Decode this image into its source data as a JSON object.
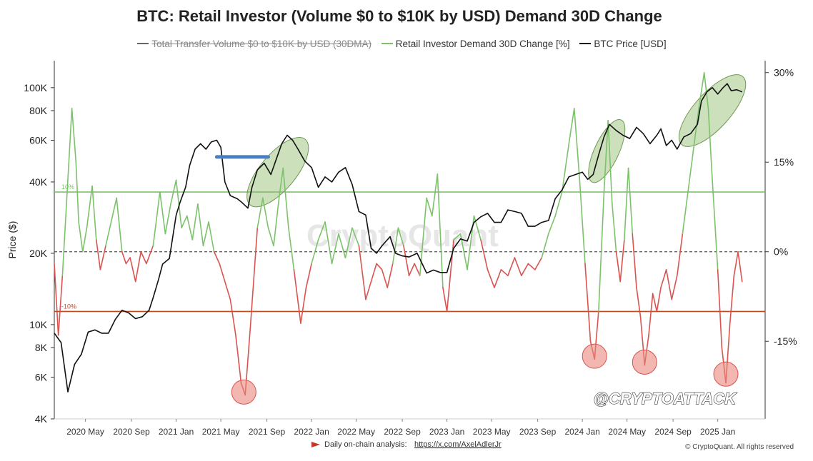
{
  "chart_data": {
    "type": "line",
    "title": "BTC: Retail Investor (Volume $0 to $10K by USD) Demand 30D Change",
    "legend": [
      {
        "name": "Total Transfer Volume  $0 to $10K by USD (30DMA)",
        "color": "#666666",
        "hidden": true
      },
      {
        "name": "Retail Investor Demand 30D Change [%]",
        "color": "#7cc26b",
        "hidden": false
      },
      {
        "name": "BTC Price [USD]",
        "color": "#111111",
        "hidden": false
      }
    ],
    "y_left_label": "Price ($)",
    "y_left_scale": "log",
    "y_left_range": [
      4000,
      130000
    ],
    "y_left_ticks": [
      {
        "value": 100000,
        "label": "100K"
      },
      {
        "value": 80000,
        "label": "80K"
      },
      {
        "value": 60000,
        "label": "60K"
      },
      {
        "value": 40000,
        "label": "40K"
      },
      {
        "value": 20000,
        "label": "20K"
      },
      {
        "value": 10000,
        "label": "10K"
      },
      {
        "value": 8000,
        "label": "8K"
      },
      {
        "value": 6000,
        "label": "6K"
      },
      {
        "value": 4000,
        "label": "4K"
      }
    ],
    "y_right_range": [
      -28,
      32
    ],
    "y_right_ticks": [
      {
        "value": 30,
        "label": "30%"
      },
      {
        "value": 15,
        "label": "15%"
      },
      {
        "value": 0,
        "label": "0%"
      },
      {
        "value": -15,
        "label": "-15%"
      }
    ],
    "x_range": [
      2020.1,
      2025.35
    ],
    "x_ticks": [
      {
        "value": 2020.33,
        "label": "2020 May"
      },
      {
        "value": 2020.67,
        "label": "2020 Sep"
      },
      {
        "value": 2021.0,
        "label": "2021 Jan"
      },
      {
        "value": 2021.33,
        "label": "2021 May"
      },
      {
        "value": 2021.67,
        "label": "2021 Sep"
      },
      {
        "value": 2022.0,
        "label": "2022 Jan"
      },
      {
        "value": 2022.33,
        "label": "2022 May"
      },
      {
        "value": 2022.67,
        "label": "2022 Sep"
      },
      {
        "value": 2023.0,
        "label": "2023 Jan"
      },
      {
        "value": 2023.33,
        "label": "2023 May"
      },
      {
        "value": 2023.67,
        "label": "2023 Sep"
      },
      {
        "value": 2024.0,
        "label": "2024 Jan"
      },
      {
        "value": 2024.33,
        "label": "2024 May"
      },
      {
        "value": 2024.67,
        "label": "2024 Sep"
      },
      {
        "value": 2025.0,
        "label": "2025 Jan"
      }
    ],
    "reference_lines": [
      {
        "value": 10,
        "label": "10%",
        "color": "#7cc26b"
      },
      {
        "value": 0,
        "label": "",
        "color": "#555555",
        "dashed": true
      },
      {
        "value": -10,
        "label": "-10%",
        "color": "#c0461e"
      }
    ],
    "series": [
      {
        "name": "BTC Price [USD]",
        "axis": "left",
        "color": "#111111",
        "points": [
          [
            2020.1,
            9200
          ],
          [
            2020.15,
            8400
          ],
          [
            2020.2,
            5200
          ],
          [
            2020.25,
            6800
          ],
          [
            2020.3,
            7500
          ],
          [
            2020.35,
            9300
          ],
          [
            2020.4,
            9500
          ],
          [
            2020.45,
            9200
          ],
          [
            2020.5,
            9200
          ],
          [
            2020.55,
            10500
          ],
          [
            2020.6,
            11500
          ],
          [
            2020.65,
            11200
          ],
          [
            2020.7,
            10600
          ],
          [
            2020.75,
            10800
          ],
          [
            2020.8,
            11500
          ],
          [
            2020.83,
            13000
          ],
          [
            2020.87,
            15500
          ],
          [
            2020.9,
            18000
          ],
          [
            2020.95,
            19000
          ],
          [
            2021.0,
            29000
          ],
          [
            2021.03,
            33000
          ],
          [
            2021.07,
            38000
          ],
          [
            2021.1,
            47000
          ],
          [
            2021.14,
            55000
          ],
          [
            2021.18,
            58000
          ],
          [
            2021.22,
            55000
          ],
          [
            2021.26,
            59000
          ],
          [
            2021.3,
            60000
          ],
          [
            2021.33,
            56000
          ],
          [
            2021.36,
            40000
          ],
          [
            2021.4,
            35000
          ],
          [
            2021.45,
            34000
          ],
          [
            2021.48,
            33000
          ],
          [
            2021.53,
            31000
          ],
          [
            2021.56,
            38000
          ],
          [
            2021.6,
            45000
          ],
          [
            2021.65,
            48000
          ],
          [
            2021.7,
            43000
          ],
          [
            2021.74,
            50000
          ],
          [
            2021.78,
            58000
          ],
          [
            2021.82,
            63000
          ],
          [
            2021.86,
            60000
          ],
          [
            2021.9,
            55000
          ],
          [
            2021.95,
            49000
          ],
          [
            2022.0,
            46000
          ],
          [
            2022.05,
            38000
          ],
          [
            2022.1,
            42000
          ],
          [
            2022.15,
            40000
          ],
          [
            2022.2,
            44000
          ],
          [
            2022.25,
            46000
          ],
          [
            2022.3,
            39000
          ],
          [
            2022.35,
            30000
          ],
          [
            2022.4,
            29000
          ],
          [
            2022.44,
            21000
          ],
          [
            2022.48,
            20000
          ],
          [
            2022.52,
            21500
          ],
          [
            2022.58,
            23500
          ],
          [
            2022.62,
            20000
          ],
          [
            2022.67,
            19500
          ],
          [
            2022.72,
            19300
          ],
          [
            2022.78,
            20000
          ],
          [
            2022.85,
            16500
          ],
          [
            2022.9,
            17000
          ],
          [
            2022.95,
            16600
          ],
          [
            2023.0,
            16600
          ],
          [
            2023.05,
            21000
          ],
          [
            2023.1,
            23000
          ],
          [
            2023.15,
            22500
          ],
          [
            2023.2,
            27000
          ],
          [
            2023.25,
            28500
          ],
          [
            2023.3,
            29500
          ],
          [
            2023.35,
            27000
          ],
          [
            2023.4,
            27000
          ],
          [
            2023.45,
            30500
          ],
          [
            2023.5,
            30000
          ],
          [
            2023.55,
            29500
          ],
          [
            2023.6,
            26000
          ],
          [
            2023.65,
            26000
          ],
          [
            2023.7,
            27000
          ],
          [
            2023.75,
            27500
          ],
          [
            2023.8,
            34000
          ],
          [
            2023.85,
            37000
          ],
          [
            2023.9,
            42000
          ],
          [
            2023.95,
            43000
          ],
          [
            2024.0,
            44000
          ],
          [
            2024.04,
            41000
          ],
          [
            2024.08,
            43000
          ],
          [
            2024.12,
            52000
          ],
          [
            2024.16,
            62000
          ],
          [
            2024.2,
            70000
          ],
          [
            2024.25,
            66000
          ],
          [
            2024.3,
            63000
          ],
          [
            2024.35,
            61000
          ],
          [
            2024.4,
            68000
          ],
          [
            2024.45,
            64000
          ],
          [
            2024.5,
            58000
          ],
          [
            2024.55,
            63000
          ],
          [
            2024.58,
            67000
          ],
          [
            2024.62,
            57000
          ],
          [
            2024.66,
            60000
          ],
          [
            2024.7,
            55000
          ],
          [
            2024.75,
            62000
          ],
          [
            2024.8,
            64000
          ],
          [
            2024.85,
            70000
          ],
          [
            2024.88,
            88000
          ],
          [
            2024.92,
            96000
          ],
          [
            2024.96,
            100000
          ],
          [
            2025.0,
            94000
          ],
          [
            2025.04,
            100000
          ],
          [
            2025.07,
            104000
          ],
          [
            2025.1,
            97000
          ],
          [
            2025.14,
            98000
          ],
          [
            2025.18,
            96000
          ]
        ]
      },
      {
        "name": "Retail Investor Demand 30D Change [%]",
        "axis": "right",
        "color_positive": "#7cc26b",
        "color_negative": "#d9534f",
        "points": [
          [
            2020.1,
            -2
          ],
          [
            2020.13,
            -14
          ],
          [
            2020.16,
            -4
          ],
          [
            2020.2,
            12
          ],
          [
            2020.23,
            24
          ],
          [
            2020.26,
            15
          ],
          [
            2020.28,
            5
          ],
          [
            2020.31,
            0
          ],
          [
            2020.34,
            4
          ],
          [
            2020.38,
            11
          ],
          [
            2020.41,
            2
          ],
          [
            2020.44,
            -3
          ],
          [
            2020.48,
            1
          ],
          [
            2020.52,
            5
          ],
          [
            2020.56,
            9
          ],
          [
            2020.6,
            0
          ],
          [
            2020.63,
            -2
          ],
          [
            2020.66,
            -1
          ],
          [
            2020.7,
            -5
          ],
          [
            2020.74,
            0
          ],
          [
            2020.78,
            -2
          ],
          [
            2020.83,
            1
          ],
          [
            2020.88,
            10
          ],
          [
            2020.92,
            3
          ],
          [
            2020.96,
            8
          ],
          [
            2021.0,
            12
          ],
          [
            2021.04,
            4
          ],
          [
            2021.08,
            6
          ],
          [
            2021.12,
            2
          ],
          [
            2021.16,
            8
          ],
          [
            2021.2,
            1
          ],
          [
            2021.24,
            5
          ],
          [
            2021.28,
            0
          ],
          [
            2021.32,
            -2
          ],
          [
            2021.36,
            -5
          ],
          [
            2021.4,
            -8
          ],
          [
            2021.44,
            -14
          ],
          [
            2021.48,
            -22
          ],
          [
            2021.51,
            -24
          ],
          [
            2021.55,
            -12
          ],
          [
            2021.6,
            4
          ],
          [
            2021.64,
            9
          ],
          [
            2021.68,
            4
          ],
          [
            2021.72,
            1
          ],
          [
            2021.76,
            9
          ],
          [
            2021.79,
            14
          ],
          [
            2021.83,
            4
          ],
          [
            2021.87,
            -3
          ],
          [
            2021.92,
            -12
          ],
          [
            2021.96,
            -6
          ],
          [
            2022.0,
            -2
          ],
          [
            2022.05,
            2
          ],
          [
            2022.1,
            5
          ],
          [
            2022.15,
            -2
          ],
          [
            2022.2,
            3
          ],
          [
            2022.25,
            -1
          ],
          [
            2022.3,
            4
          ],
          [
            2022.35,
            1
          ],
          [
            2022.4,
            -8
          ],
          [
            2022.44,
            -5
          ],
          [
            2022.48,
            -2
          ],
          [
            2022.52,
            -3
          ],
          [
            2022.56,
            -6
          ],
          [
            2022.6,
            -2
          ],
          [
            2022.64,
            4
          ],
          [
            2022.68,
            1
          ],
          [
            2022.72,
            -4
          ],
          [
            2022.76,
            -2
          ],
          [
            2022.8,
            -4
          ],
          [
            2022.85,
            9
          ],
          [
            2022.89,
            6
          ],
          [
            2022.93,
            13
          ],
          [
            2022.97,
            -6
          ],
          [
            2023.0,
            -10
          ],
          [
            2023.05,
            2
          ],
          [
            2023.1,
            3
          ],
          [
            2023.15,
            -3
          ],
          [
            2023.2,
            6
          ],
          [
            2023.25,
            2
          ],
          [
            2023.3,
            -3
          ],
          [
            2023.35,
            -6
          ],
          [
            2023.4,
            -3
          ],
          [
            2023.45,
            -4
          ],
          [
            2023.5,
            -1
          ],
          [
            2023.55,
            -4
          ],
          [
            2023.6,
            -2
          ],
          [
            2023.65,
            -3
          ],
          [
            2023.7,
            -1
          ],
          [
            2023.75,
            3
          ],
          [
            2023.8,
            6
          ],
          [
            2023.85,
            10
          ],
          [
            2023.9,
            18
          ],
          [
            2023.94,
            24
          ],
          [
            2023.98,
            12
          ],
          [
            2024.02,
            -2
          ],
          [
            2024.06,
            -15
          ],
          [
            2024.09,
            -18
          ],
          [
            2024.12,
            -10
          ],
          [
            2024.16,
            10
          ],
          [
            2024.19,
            22
          ],
          [
            2024.22,
            8
          ],
          [
            2024.25,
            0
          ],
          [
            2024.28,
            -5
          ],
          [
            2024.31,
            2
          ],
          [
            2024.34,
            14
          ],
          [
            2024.37,
            3
          ],
          [
            2024.4,
            -6
          ],
          [
            2024.43,
            -11
          ],
          [
            2024.46,
            -19
          ],
          [
            2024.49,
            -14
          ],
          [
            2024.52,
            -7
          ],
          [
            2024.55,
            -10
          ],
          [
            2024.58,
            -6
          ],
          [
            2024.62,
            -3
          ],
          [
            2024.66,
            -8
          ],
          [
            2024.7,
            -4
          ],
          [
            2024.74,
            3
          ],
          [
            2024.78,
            10
          ],
          [
            2024.82,
            17
          ],
          [
            2024.86,
            24
          ],
          [
            2024.9,
            30
          ],
          [
            2024.93,
            24
          ],
          [
            2024.96,
            12
          ],
          [
            2025.0,
            -3
          ],
          [
            2025.03,
            -16
          ],
          [
            2025.06,
            -22
          ],
          [
            2025.09,
            -12
          ],
          [
            2025.12,
            -4
          ],
          [
            2025.15,
            0
          ],
          [
            2025.18,
            -5
          ]
        ]
      }
    ],
    "annotations": {
      "ellipses_green": [
        {
          "x": 2021.75,
          "y_price": 44000
        },
        {
          "x": 2024.18,
          "y_price": 54000
        },
        {
          "x": 2024.96,
          "y_price": 80000
        }
      ],
      "circles_red": [
        {
          "x": 2021.5,
          "y_pct": -23.5
        },
        {
          "x": 2024.09,
          "y_pct": -17.5
        },
        {
          "x": 2024.46,
          "y_pct": -18.5
        },
        {
          "x": 2025.06,
          "y_pct": -20.5
        }
      ],
      "blue_bar": {
        "x_start": 2021.3,
        "x_end": 2021.68,
        "price": 51000
      }
    },
    "watermark": "CryptoQuant",
    "source_note_label": "Daily on-chain analysis: ",
    "source_note_link": "https://x.com/AxelAdlerJr",
    "copyright": "© CryptoQuant. All rights reserved",
    "handle": "@CRYPTOATTACK"
  }
}
